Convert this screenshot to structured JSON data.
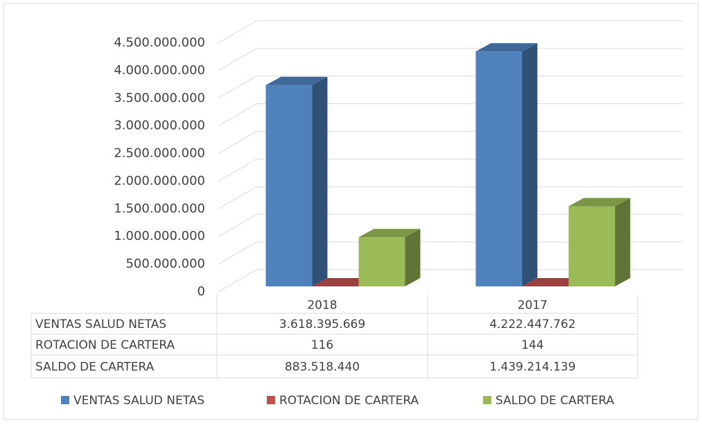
{
  "chart_data": {
    "type": "bar3d",
    "categories": [
      "2018",
      "2017"
    ],
    "series": [
      {
        "name": "VENTAS SALUD NETAS",
        "color": "#4f81bd",
        "values": [
          3618395669,
          4222447762
        ],
        "value_labels": [
          "3.618.395.669",
          "4.222.447.762"
        ]
      },
      {
        "name": "ROTACION DE CARTERA",
        "color": "#c0504d",
        "values": [
          116,
          144
        ]
      },
      {
        "name": "SALDO DE CARTERA",
        "color": "#9bbb59",
        "values": [
          883518440,
          1439214139
        ],
        "value_labels": [
          "883.518.440",
          "1.439.214.139"
        ]
      }
    ],
    "ylim": [
      0,
      4500000000
    ],
    "yticks": [
      0,
      {
        "value": 500000000,
        "label": "500.000.000"
      },
      {
        "value": 1000000000,
        "label": "1.000.000.000"
      },
      {
        "value": 1500000000,
        "label": "1.500.000.000"
      },
      {
        "value": 2000000000,
        "label": "2.000.000.000"
      },
      {
        "value": 2500000000,
        "label": "2.500.000.000"
      },
      {
        "value": 3000000000,
        "label": "3.000.000.000"
      },
      {
        "value": 3500000000,
        "label": "3.500.000.000"
      },
      {
        "value": 4000000000,
        "label": "4.000.000.000"
      },
      {
        "value": 4500000000,
        "label": "4.500.000.000"
      }
    ],
    "grid": true,
    "legend": "bottom",
    "data_table": true
  }
}
